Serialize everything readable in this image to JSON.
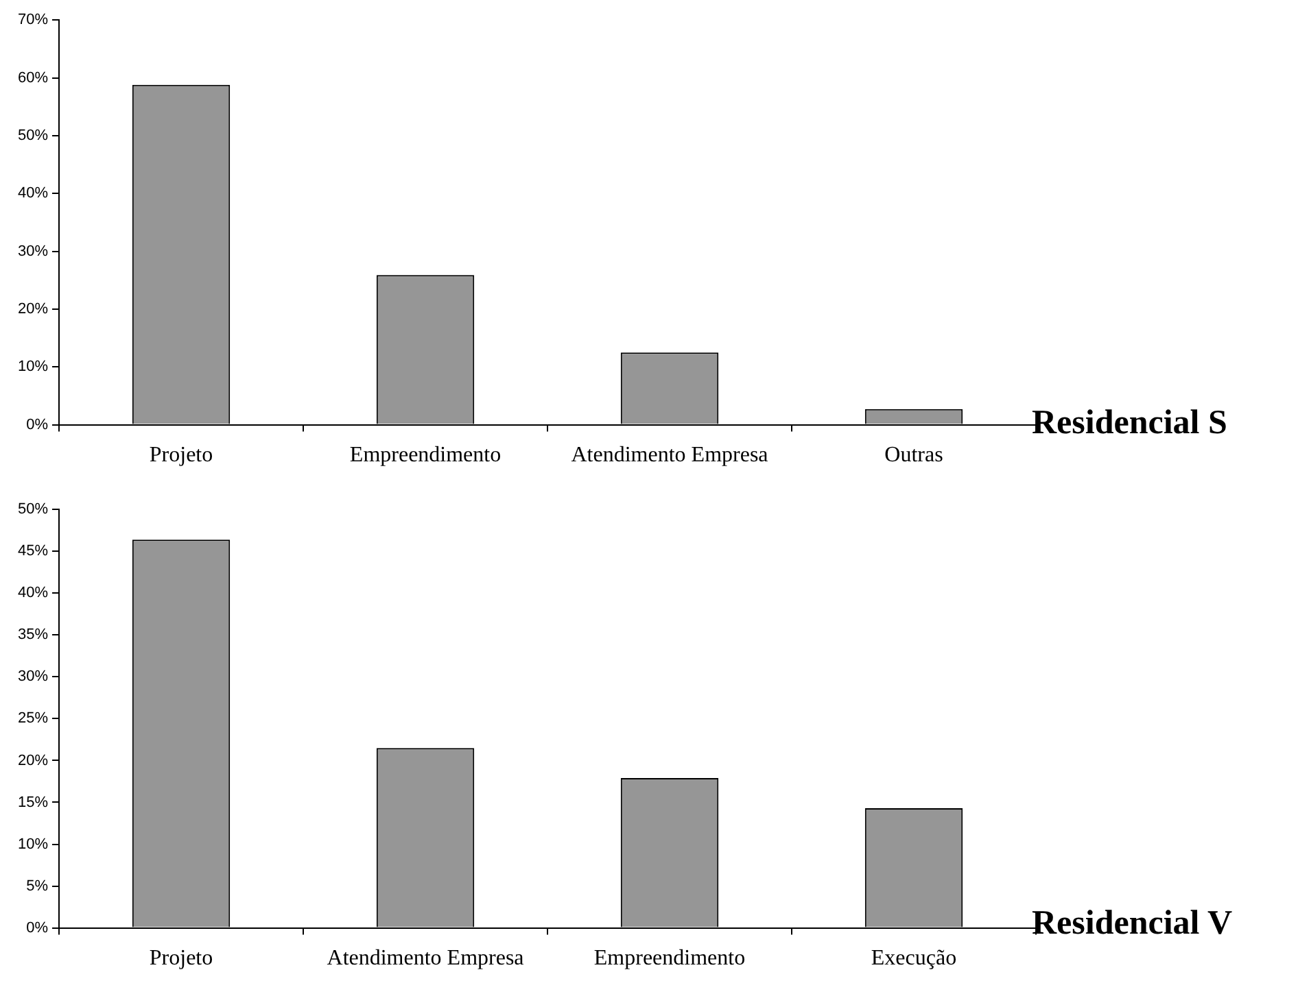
{
  "chart_data": [
    {
      "type": "bar",
      "title": "Residencial S",
      "categories": [
        "Projeto",
        "Empreendimento",
        "Atendimento Empresa",
        "Outras"
      ],
      "values": [
        58.8,
        25.9,
        12.5,
        2.7
      ],
      "color": "#969696",
      "ylim": [
        0,
        70
      ],
      "yticks": [
        {
          "value": 0,
          "label": "0%"
        },
        {
          "value": 10,
          "label": "10%"
        },
        {
          "value": 20,
          "label": "20%"
        },
        {
          "value": 30,
          "label": "30%"
        },
        {
          "value": 40,
          "label": "40%"
        },
        {
          "value": 50,
          "label": "50%"
        },
        {
          "value": 60,
          "label": "60%"
        },
        {
          "value": 70,
          "label": "70%"
        }
      ],
      "grid": false,
      "legend": false
    },
    {
      "type": "bar",
      "title": "Residencial V",
      "categories": [
        "Projeto",
        "Atendimento Empresa",
        "Empreendimento",
        "Execução"
      ],
      "values": [
        46.4,
        21.5,
        17.9,
        14.3
      ],
      "color": "#969696",
      "ylim": [
        0,
        50
      ],
      "yticks": [
        {
          "value": 0,
          "label": "0%"
        },
        {
          "value": 5,
          "label": "5%"
        },
        {
          "value": 10,
          "label": "10%"
        },
        {
          "value": 15,
          "label": "15%"
        },
        {
          "value": 20,
          "label": "20%"
        },
        {
          "value": 25,
          "label": "25%"
        },
        {
          "value": 30,
          "label": "30%"
        },
        {
          "value": 35,
          "label": "35%"
        },
        {
          "value": 40,
          "label": "40%"
        },
        {
          "value": 45,
          "label": "45%"
        },
        {
          "value": 50,
          "label": "50%"
        }
      ],
      "grid": false,
      "legend": false
    }
  ]
}
